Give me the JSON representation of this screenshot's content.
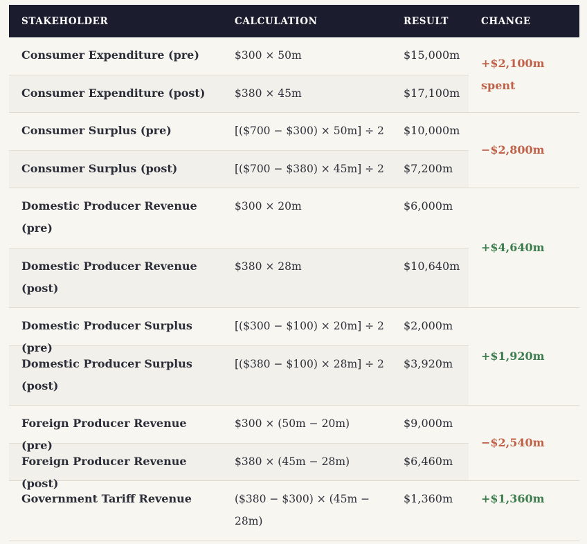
{
  "header": {
    "stakeholder": "STAKEHOLDER",
    "calculation": "CALCULATION",
    "result": "RESULT",
    "change": "CHANGE"
  },
  "groups": [
    {
      "rows": [
        {
          "stakeholder": "Consumer Expenditure (pre)",
          "calculation": "$300 × 50m",
          "result": "$15,000m"
        },
        {
          "stakeholder": "Consumer Expenditure (post)",
          "calculation": "$380 × 45m",
          "result": "$17,100m"
        }
      ],
      "change": "+$2,100m spent",
      "change_color": "#c0614a"
    },
    {
      "rows": [
        {
          "stakeholder": "Consumer Surplus (pre)",
          "calculation": "[($700 − $300) × 50m] ÷ 2",
          "result": "$10,000m"
        },
        {
          "stakeholder": "Consumer Surplus (post)",
          "calculation": "[($700 − $380) × 45m] ÷ 2",
          "result": "$7,200m"
        }
      ],
      "change": "−$2,800m",
      "change_color": "#c0614a"
    },
    {
      "rows": [
        {
          "stakeholder": "Domestic Producer Revenue (pre)",
          "calculation": "$300 × 20m",
          "result": "$6,000m"
        },
        {
          "stakeholder": "Domestic Producer Revenue (post)",
          "calculation": "$380 × 28m",
          "result": "$10,640m"
        }
      ],
      "change": "+$4,640m",
      "change_color": "#3d7d4f"
    },
    {
      "rows": [
        {
          "stakeholder": "Domestic Producer Surplus (pre)",
          "calculation": "[($300 − $100) × 20m] ÷ 2",
          "result": "$2,000m"
        },
        {
          "stakeholder": "Domestic Producer Surplus (post)",
          "calculation": "[($380 − $100) × 28m] ÷ 2",
          "result": "$3,920m"
        }
      ],
      "change": "+$1,920m",
      "change_color": "#3d7d4f"
    },
    {
      "rows": [
        {
          "stakeholder": "Foreign Producer Revenue (pre)",
          "calculation": "$300 × (50m − 20m)",
          "result": "$9,000m"
        },
        {
          "stakeholder": "Foreign Producer Revenue (post)",
          "calculation": "$380 × (45m − 28m)",
          "result": "$6,460m"
        }
      ],
      "change": "−$2,540m",
      "change_color": "#c0614a"
    },
    {
      "rows": [
        {
          "stakeholder": "Government Tariff Revenue",
          "calculation": "($380 − $300) × (45m − 28m)",
          "result": "$1,360m"
        }
      ],
      "change": "+$1,360m",
      "change_color": "#3d7d4f"
    }
  ]
}
